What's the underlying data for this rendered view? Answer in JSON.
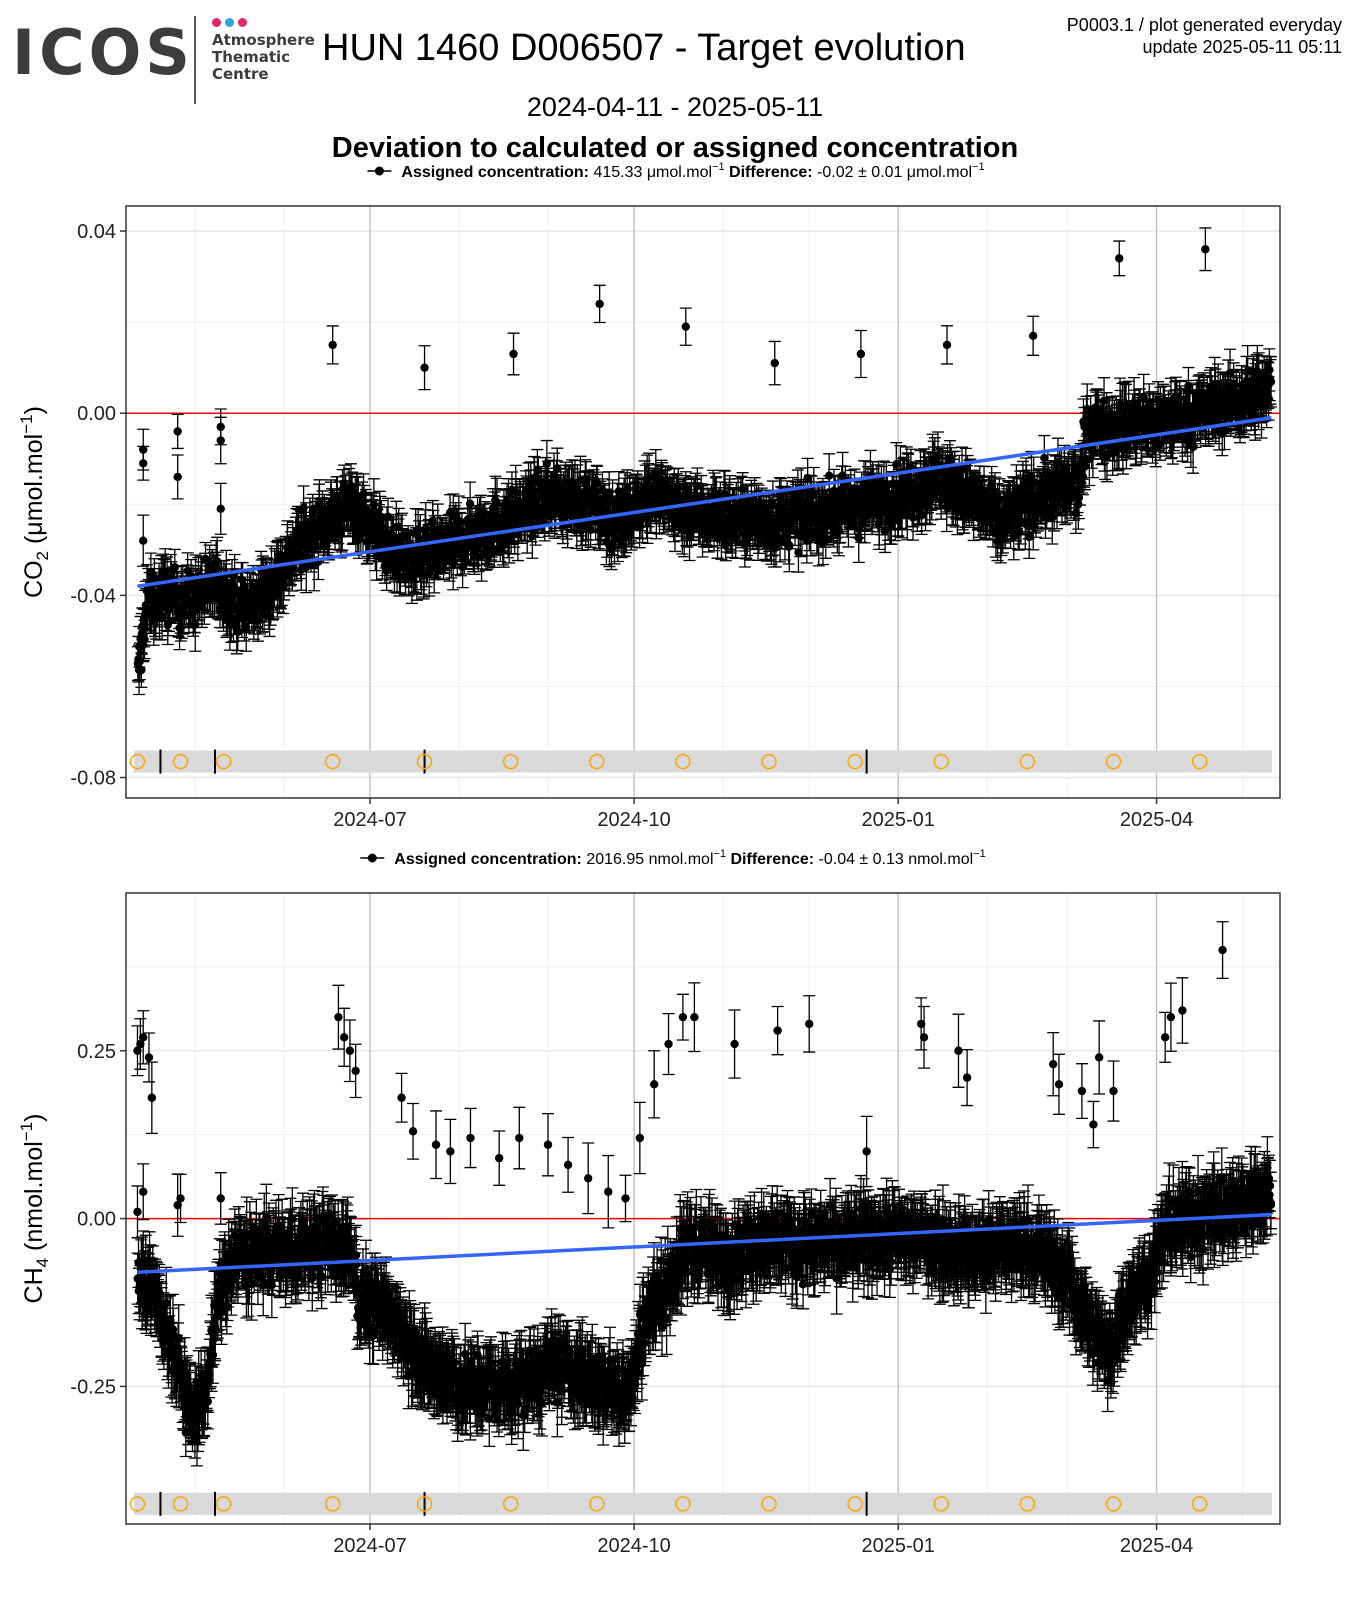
{
  "header": {
    "logo_text": "ICOS",
    "logo_sub_lines": [
      "Atmosphere",
      "Thematic",
      "Centre"
    ],
    "logo_dot_colors": [
      "#e4246b",
      "#2aa3dd",
      "#e4246b"
    ],
    "title": "HUN 1460 D006507 - Target evolution",
    "corner_line1": "P0003.1 / plot generated everyday",
    "corner_line2": "update  2025-05-11 05:11",
    "date_range": "2024-04-11 - 2025-05-11",
    "subtitle": "Deviation to calculated or assigned concentration"
  },
  "colors": {
    "points": "#000000",
    "trend": "#3366ff",
    "zero_line": "#ee0000",
    "events": "#ffa500",
    "strip": "#d9d9d9",
    "grid": "#e8e8e8"
  },
  "chart_data": [
    {
      "type": "scatter",
      "legend": {
        "a_label": "Assigned concentration:",
        "a_value": "415.33 μmol.mol",
        "a_sup": "−1",
        "d_label": "Difference:",
        "d_value": "-0.02 ± 0.01 μmol.mol",
        "d_sup": "−1"
      },
      "ylabel_parts": [
        "CO",
        "2",
        " (μmol.mol",
        "−1",
        ")"
      ],
      "ylim": [
        -0.0845,
        0.0455
      ],
      "yticks": [
        0.04,
        0.0,
        -0.04,
        -0.08
      ],
      "ytick_labels": [
        "0.04",
        "0.00",
        "-0.04",
        "-0.08"
      ],
      "xlim": [
        "2024-04-07",
        "2025-05-14"
      ],
      "xticks": [
        "2024-07-01",
        "2024-10-01",
        "2025-01-01",
        "2025-04-01"
      ],
      "xtick_labels": [
        "2024-07",
        "2024-10",
        "2025-01",
        "2025-04"
      ],
      "grid": true,
      "zero_line": 0,
      "trend": {
        "start": [
          "2024-04-11",
          -0.038
        ],
        "end": [
          "2025-05-11",
          -0.001
        ]
      },
      "series_anchors": [
        [
          "2024-04-11",
          -0.058
        ],
        [
          "2024-04-14",
          -0.042
        ],
        [
          "2024-04-20",
          -0.04
        ],
        [
          "2024-04-30",
          -0.041
        ],
        [
          "2024-05-08",
          -0.037
        ],
        [
          "2024-05-18",
          -0.043
        ],
        [
          "2024-05-25",
          -0.04
        ],
        [
          "2024-06-05",
          -0.03
        ],
        [
          "2024-06-15",
          -0.024
        ],
        [
          "2024-06-25",
          -0.02
        ],
        [
          "2024-07-05",
          -0.028
        ],
        [
          "2024-07-15",
          -0.033
        ],
        [
          "2024-07-25",
          -0.03
        ],
        [
          "2024-08-05",
          -0.027
        ],
        [
          "2024-08-20",
          -0.023
        ],
        [
          "2024-09-01",
          -0.018
        ],
        [
          "2024-09-15",
          -0.02
        ],
        [
          "2024-09-25",
          -0.024
        ],
        [
          "2024-10-05",
          -0.018
        ],
        [
          "2024-10-15",
          -0.02
        ],
        [
          "2024-10-25",
          -0.022
        ],
        [
          "2024-11-05",
          -0.023
        ],
        [
          "2024-11-20",
          -0.024
        ],
        [
          "2024-12-05",
          -0.022
        ],
        [
          "2024-12-20",
          -0.02
        ],
        [
          "2025-01-01",
          -0.018
        ],
        [
          "2025-01-15",
          -0.014
        ],
        [
          "2025-01-25",
          -0.018
        ],
        [
          "2025-02-05",
          -0.024
        ],
        [
          "2025-02-20",
          -0.018
        ],
        [
          "2025-03-05",
          -0.016
        ],
        [
          "2025-03-08",
          -0.003
        ],
        [
          "2025-03-20",
          -0.003
        ],
        [
          "2025-04-01",
          -0.002
        ],
        [
          "2025-04-15",
          0.0
        ],
        [
          "2025-04-25",
          0.002
        ],
        [
          "2025-05-11",
          0.005
        ]
      ],
      "extra_points": [
        [
          "2024-04-13",
          -0.008
        ],
        [
          "2024-04-13",
          -0.011
        ],
        [
          "2024-04-13",
          -0.028
        ],
        [
          "2024-04-25",
          -0.004
        ],
        [
          "2024-04-25",
          -0.014
        ],
        [
          "2024-05-10",
          -0.003
        ],
        [
          "2024-05-10",
          -0.006
        ],
        [
          "2024-05-10",
          -0.021
        ],
        [
          "2024-06-18",
          0.015
        ],
        [
          "2024-07-20",
          0.01
        ],
        [
          "2024-08-20",
          0.013
        ],
        [
          "2024-09-19",
          0.024
        ],
        [
          "2024-10-19",
          0.019
        ],
        [
          "2024-11-19",
          0.011
        ],
        [
          "2024-12-19",
          0.013
        ],
        [
          "2025-01-18",
          0.015
        ],
        [
          "2025-02-17",
          0.017
        ],
        [
          "2025-03-19",
          0.034
        ],
        [
          "2025-04-18",
          0.036
        ]
      ],
      "error_bar": 0.0045,
      "events": [
        "2024-04-11",
        "2024-04-26",
        "2024-05-11",
        "2024-06-18",
        "2024-07-20",
        "2024-08-19",
        "2024-09-18",
        "2024-10-18",
        "2024-11-17",
        "2024-12-17",
        "2025-01-16",
        "2025-02-15",
        "2025-03-17",
        "2025-04-16"
      ],
      "event_marks": [
        "2024-04-19",
        "2024-05-08",
        "2024-07-20",
        "2024-12-21"
      ],
      "strip_y": -0.0765
    },
    {
      "type": "scatter",
      "legend": {
        "a_label": "Assigned concentration:",
        "a_value": "2016.95 nmol.mol",
        "a_sup": "−1",
        "d_label": "Difference:",
        "d_value": "-0.04 ± 0.13 nmol.mol",
        "d_sup": "−1"
      },
      "ylabel_parts": [
        "CH",
        "4",
        " (nmol.mol",
        "−1",
        ")"
      ],
      "ylim": [
        -0.455,
        0.485
      ],
      "yticks": [
        0.25,
        0.0,
        -0.25
      ],
      "ytick_labels": [
        "0.25",
        "0.00",
        "-0.25"
      ],
      "xlim": [
        "2024-04-07",
        "2025-05-14"
      ],
      "xticks": [
        "2024-07-01",
        "2024-10-01",
        "2025-01-01",
        "2025-04-01"
      ],
      "xtick_labels": [
        "2024-07",
        "2024-10",
        "2025-01",
        "2025-04"
      ],
      "grid": true,
      "zero_line": 0,
      "trend": {
        "start": [
          "2024-04-11",
          -0.08
        ],
        "end": [
          "2025-05-11",
          0.006
        ]
      },
      "series_anchors": [
        [
          "2024-04-11",
          -0.08
        ],
        [
          "2024-04-15",
          -0.1
        ],
        [
          "2024-04-20",
          -0.15
        ],
        [
          "2024-04-25",
          -0.22
        ],
        [
          "2024-04-30",
          -0.3
        ],
        [
          "2024-05-05",
          -0.25
        ],
        [
          "2024-05-10",
          -0.1
        ],
        [
          "2024-05-15",
          -0.06
        ],
        [
          "2024-06-01",
          -0.05
        ],
        [
          "2024-06-15",
          -0.04
        ],
        [
          "2024-06-25",
          -0.05
        ],
        [
          "2024-06-27",
          -0.12
        ],
        [
          "2024-07-10",
          -0.15
        ],
        [
          "2024-07-20",
          -0.22
        ],
        [
          "2024-08-01",
          -0.25
        ],
        [
          "2024-08-20",
          -0.25
        ],
        [
          "2024-09-05",
          -0.22
        ],
        [
          "2024-09-20",
          -0.25
        ],
        [
          "2024-09-30",
          -0.25
        ],
        [
          "2024-10-05",
          -0.14
        ],
        [
          "2024-10-12",
          -0.1
        ],
        [
          "2024-10-20",
          -0.04
        ],
        [
          "2024-11-01",
          -0.06
        ],
        [
          "2024-11-15",
          -0.03
        ],
        [
          "2024-12-01",
          -0.04
        ],
        [
          "2024-12-20",
          -0.03
        ],
        [
          "2025-01-10",
          -0.03
        ],
        [
          "2025-01-25",
          -0.05
        ],
        [
          "2025-02-10",
          -0.04
        ],
        [
          "2025-02-20",
          -0.05
        ],
        [
          "2025-03-01",
          -0.09
        ],
        [
          "2025-03-10",
          -0.17
        ],
        [
          "2025-03-15",
          -0.2
        ],
        [
          "2025-03-22",
          -0.12
        ],
        [
          "2025-03-30",
          -0.08
        ],
        [
          "2025-04-05",
          -0.01
        ],
        [
          "2025-04-15",
          0.0
        ],
        [
          "2025-04-25",
          0.01
        ],
        [
          "2025-05-11",
          0.04
        ]
      ],
      "extra_points": [
        [
          "2024-04-11",
          0.25
        ],
        [
          "2024-04-12",
          0.26
        ],
        [
          "2024-04-13",
          0.27
        ],
        [
          "2024-04-15",
          0.24
        ],
        [
          "2024-04-16",
          0.18
        ],
        [
          "2024-04-11",
          0.01
        ],
        [
          "2024-04-13",
          0.04
        ],
        [
          "2024-04-25",
          0.02
        ],
        [
          "2024-04-26",
          0.03
        ],
        [
          "2024-05-10",
          0.03
        ],
        [
          "2024-06-20",
          0.3
        ],
        [
          "2024-06-22",
          0.27
        ],
        [
          "2024-06-24",
          0.25
        ],
        [
          "2024-06-26",
          0.22
        ],
        [
          "2024-07-12",
          0.18
        ],
        [
          "2024-07-16",
          0.13
        ],
        [
          "2024-07-24",
          0.11
        ],
        [
          "2024-07-29",
          0.1
        ],
        [
          "2024-08-05",
          0.12
        ],
        [
          "2024-08-15",
          0.09
        ],
        [
          "2024-08-22",
          0.12
        ],
        [
          "2024-09-01",
          0.11
        ],
        [
          "2024-09-08",
          0.08
        ],
        [
          "2024-09-15",
          0.06
        ],
        [
          "2024-09-22",
          0.04
        ],
        [
          "2024-09-28",
          0.03
        ],
        [
          "2024-10-03",
          0.12
        ],
        [
          "2024-10-08",
          0.2
        ],
        [
          "2024-10-13",
          0.26
        ],
        [
          "2024-10-18",
          0.3
        ],
        [
          "2024-10-22",
          0.3
        ],
        [
          "2024-11-05",
          0.26
        ],
        [
          "2024-11-20",
          0.28
        ],
        [
          "2024-12-01",
          0.29
        ],
        [
          "2024-12-21",
          0.1
        ],
        [
          "2025-01-09",
          0.29
        ],
        [
          "2025-01-10",
          0.27
        ],
        [
          "2025-01-22",
          0.25
        ],
        [
          "2025-01-25",
          0.21
        ],
        [
          "2025-02-24",
          0.23
        ],
        [
          "2025-02-26",
          0.2
        ],
        [
          "2025-03-06",
          0.19
        ],
        [
          "2025-03-12",
          0.24
        ],
        [
          "2025-03-10",
          0.14
        ],
        [
          "2025-03-17",
          0.19
        ],
        [
          "2025-04-04",
          0.27
        ],
        [
          "2025-04-06",
          0.3
        ],
        [
          "2025-04-10",
          0.31
        ],
        [
          "2025-04-24",
          0.4
        ]
      ],
      "error_bar": 0.042,
      "events": [
        "2024-04-11",
        "2024-04-26",
        "2024-05-11",
        "2024-06-18",
        "2024-07-20",
        "2024-08-19",
        "2024-09-18",
        "2024-10-18",
        "2024-11-17",
        "2024-12-17",
        "2025-01-16",
        "2025-02-15",
        "2025-03-17",
        "2025-04-16"
      ],
      "event_marks": [
        "2024-04-19",
        "2024-05-08",
        "2024-07-20",
        "2024-12-21"
      ],
      "strip_y": -0.425
    }
  ]
}
